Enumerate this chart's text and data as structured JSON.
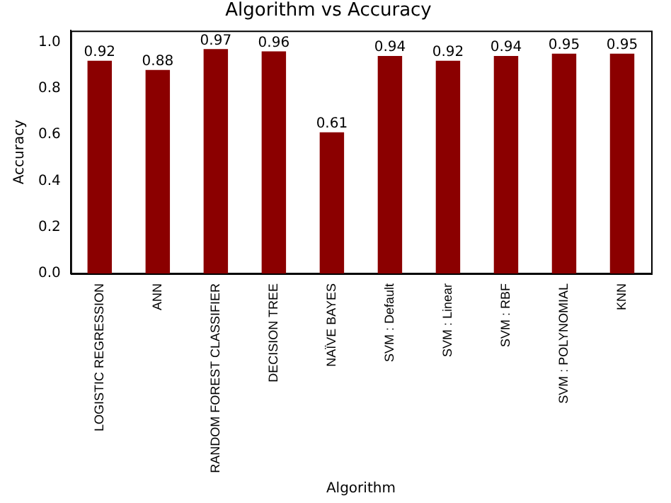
{
  "chart_data": {
    "type": "bar",
    "title": "Algorithm vs Accuracy",
    "xlabel": "Algorithm",
    "ylabel": "Accuracy",
    "categories": [
      "LOGISTIC REGRESSION",
      "ANN",
      "RANDOM FOREST CLASSIFIER",
      "DECISION TREE",
      "NAÏVE BAYES",
      "SVM : Default",
      "SVM : Linear",
      "SVM : RBF",
      "SVM : POLYNOMIAL",
      "KNN"
    ],
    "values": [
      0.92,
      0.88,
      0.97,
      0.96,
      0.61,
      0.94,
      0.92,
      0.94,
      0.95,
      0.95
    ],
    "color": "#8b0000",
    "ylim": [
      0,
      1.05
    ],
    "yticks": [
      {
        "value": 0,
        "label": "0.0"
      },
      0.2,
      0.4,
      0.6,
      0.8,
      {
        "value": 1,
        "label": "1.0"
      }
    ],
    "grid": false,
    "legend": false,
    "data_labels": true
  }
}
